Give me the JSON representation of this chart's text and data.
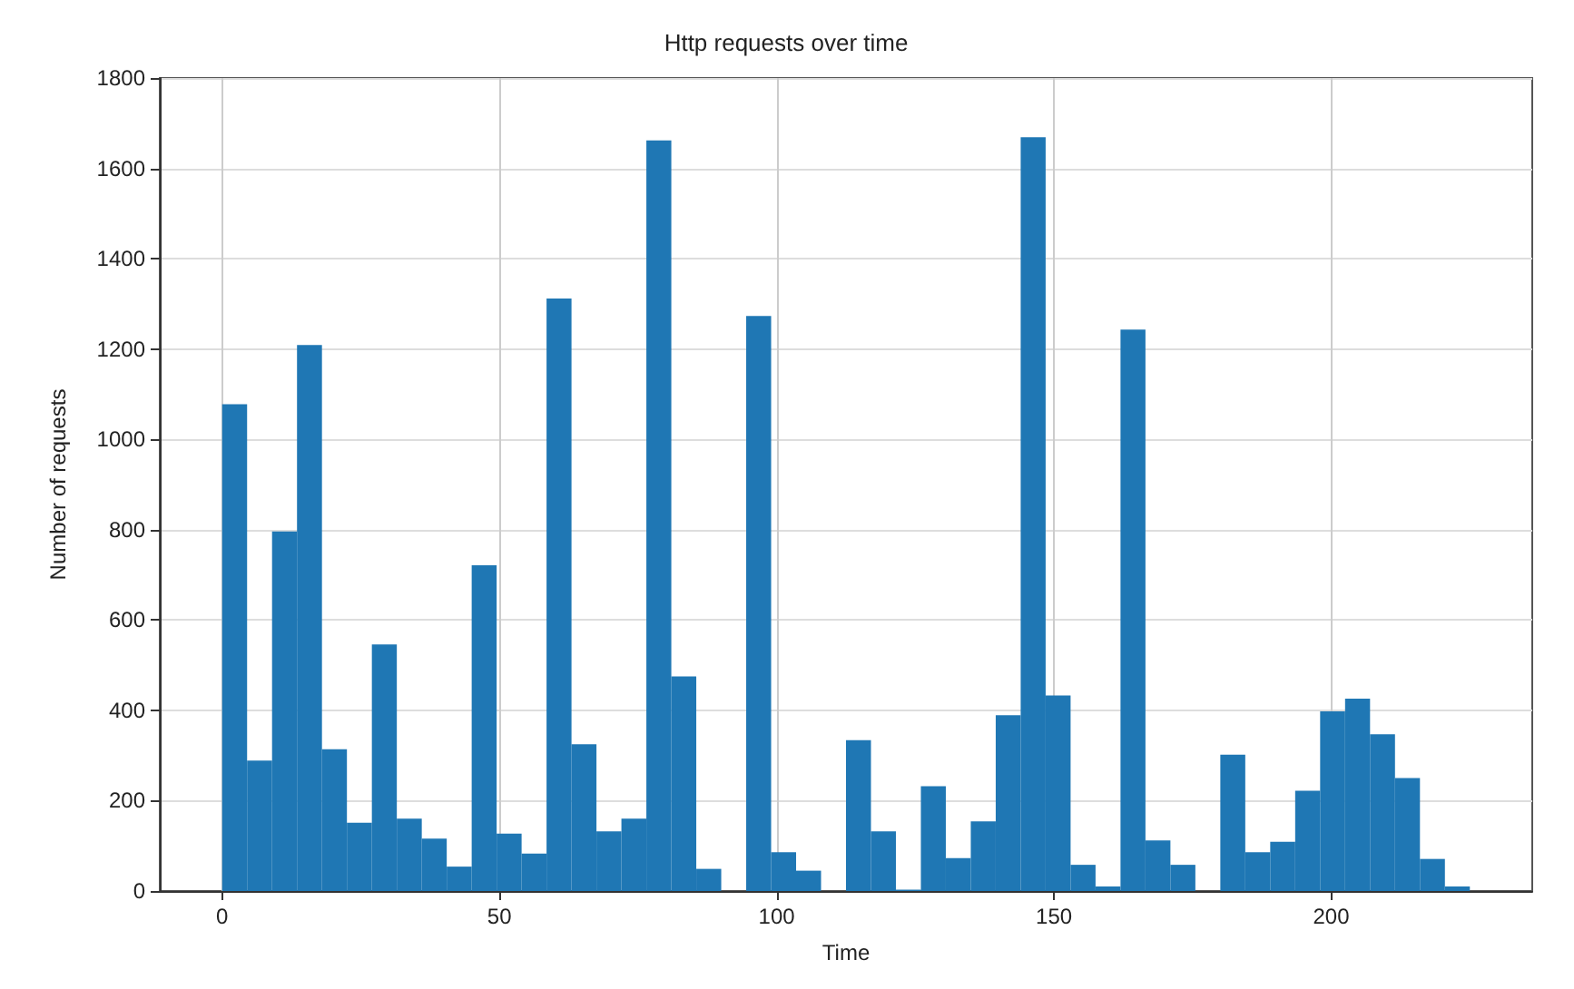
{
  "chart_data": {
    "type": "histogram",
    "title": "Http requests over time",
    "xlabel": "Time",
    "ylabel": "Number of requests",
    "bins": [
      0,
      4.5,
      9,
      13.5,
      18,
      22.5,
      27,
      31.5,
      36,
      40.5,
      45,
      49.5,
      54,
      58.5,
      63,
      67.5,
      72,
      76.5,
      81,
      85.5,
      90,
      94.5,
      99,
      103.5,
      108,
      112.5,
      117,
      121.5,
      126,
      130.5,
      135,
      139.5,
      144,
      148.5,
      153,
      157.5,
      162,
      166.5,
      171,
      175.5,
      180,
      184.5,
      189,
      193.5,
      198,
      202.5,
      207,
      211.5,
      216,
      220.5,
      225
    ],
    "values": [
      1078,
      289,
      796,
      1209,
      314,
      151,
      546,
      160,
      116,
      54,
      721,
      127,
      83,
      1312,
      325,
      132,
      160,
      1662,
      475,
      49,
      0,
      1273,
      86,
      45,
      0,
      334,
      132,
      3,
      232,
      73,
      154,
      389,
      1669,
      433,
      58,
      10,
      1243,
      112,
      58,
      0,
      302,
      86,
      109,
      222,
      398,
      426,
      347,
      250,
      71,
      10
    ],
    "color": "#1f77b4",
    "xlim": [
      -11.25,
      236.25
    ],
    "xticks": [
      0,
      50,
      100,
      150,
      200
    ],
    "ylim": [
      0,
      1800
    ],
    "yticks": [
      0,
      200,
      400,
      600,
      800,
      1000,
      1200,
      1400,
      1600,
      1800
    ],
    "grid": true
  }
}
